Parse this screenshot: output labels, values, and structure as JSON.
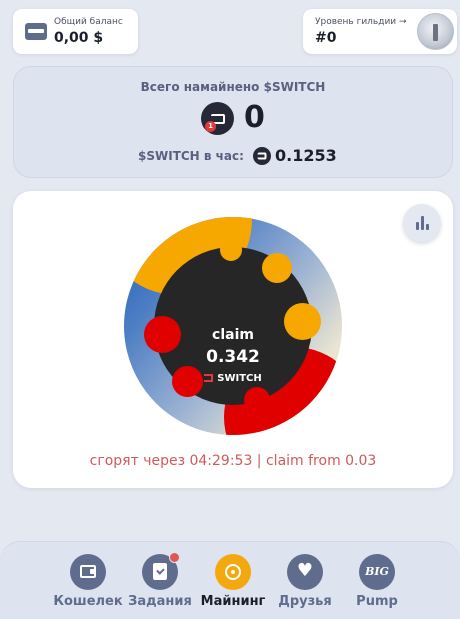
{
  "balance": {
    "label": "Общий баланс",
    "value": "0,00 $",
    "icon": "card-icon"
  },
  "guild": {
    "label": "Уровень гильдии →",
    "value": "#0",
    "icon": "guild-avatar"
  },
  "stats": {
    "title": "Всего намайнено $SWITCH",
    "total": "0",
    "rate_label": "$SWITCH в час:",
    "rate_value": "0.1253",
    "badge": "1"
  },
  "mining": {
    "claim_label": "claim",
    "claim_value": "0.342",
    "token": "SWITCH",
    "burn_text": "сгорят через 04:29:53 | claim from 0.03"
  },
  "colors": {
    "accent": "#f3a80e",
    "nav_icon": "#5f6c8e",
    "burn_text": "#cf5a5a",
    "red_blob": "#e00000",
    "orange_blob": "#f7a800"
  },
  "nav": {
    "items": [
      {
        "label": "Кошелек",
        "icon": "wallet-icon",
        "active": false
      },
      {
        "label": "Задания",
        "icon": "tasks-icon",
        "active": false,
        "badge": true
      },
      {
        "label": "Майнинг",
        "icon": "mining-icon",
        "active": true
      },
      {
        "label": "Друзья",
        "icon": "heart-icon",
        "active": false
      },
      {
        "label": "Pump",
        "icon": "big-icon",
        "active": false,
        "icon_text": "BIG"
      }
    ]
  }
}
